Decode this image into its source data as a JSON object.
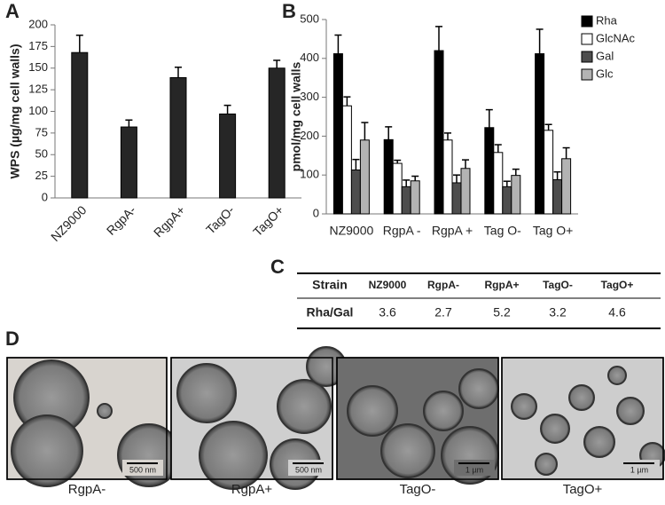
{
  "chart_data": [
    {
      "type": "bar",
      "panel": "A",
      "ylabel": "WPS (µg/mg cell walls)",
      "categories": [
        "NZ9000",
        "RgpA-",
        "RgpA+",
        "TagO-",
        "TagO+"
      ],
      "values": [
        168,
        82,
        139,
        97,
        150
      ],
      "errors": [
        20,
        8,
        12,
        10,
        9
      ],
      "color": "#262626",
      "ylim": [
        0,
        200
      ],
      "yticks": [
        0,
        25,
        50,
        75,
        100,
        125,
        150,
        175,
        200
      ]
    },
    {
      "type": "bar",
      "panel": "B",
      "ylabel": "pmol/mg cell walls",
      "categories": [
        "NZ9000",
        "RgpA -",
        "RgpA +",
        "Tag O-",
        "Tag O+"
      ],
      "series": [
        {
          "name": "Rha",
          "color": "#000000",
          "values": [
            412,
            191,
            420,
            222,
            412
          ],
          "errors": [
            48,
            33,
            62,
            46,
            63
          ]
        },
        {
          "name": "GlcNAc",
          "color": "#ffffff",
          "values": [
            278,
            130,
            190,
            158,
            215
          ],
          "errors": [
            23,
            8,
            18,
            20,
            15
          ]
        },
        {
          "name": "Gal",
          "color": "#4d4d4d",
          "values": [
            113,
            70,
            80,
            70,
            88
          ],
          "errors": [
            27,
            17,
            20,
            14,
            20
          ]
        },
        {
          "name": "Glc",
          "color": "#b3b3b3",
          "values": [
            190,
            85,
            117,
            99,
            142
          ],
          "errors": [
            45,
            12,
            22,
            16,
            28
          ]
        }
      ],
      "ylim": [
        0,
        500
      ],
      "yticks": [
        0,
        100,
        200,
        300,
        400,
        500
      ],
      "legend": "top-right"
    }
  ],
  "table": {
    "panel": "C",
    "header": [
      "Strain",
      "NZ9000",
      "RgpA-",
      "RgpA+",
      "TagO-",
      "TagO+"
    ],
    "rows": [
      [
        "Rha/Gal",
        "3.6",
        "2.7",
        "5.2",
        "3.2",
        "4.6"
      ]
    ]
  },
  "micrographs": {
    "panel": "D",
    "items": [
      {
        "label": "RgpA-",
        "scale": "500 nm"
      },
      {
        "label": "RgpA+",
        "scale": "500 nm"
      },
      {
        "label": "TagO-",
        "scale": "1 µm"
      },
      {
        "label": "TagO+",
        "scale": "1 µm"
      }
    ]
  }
}
